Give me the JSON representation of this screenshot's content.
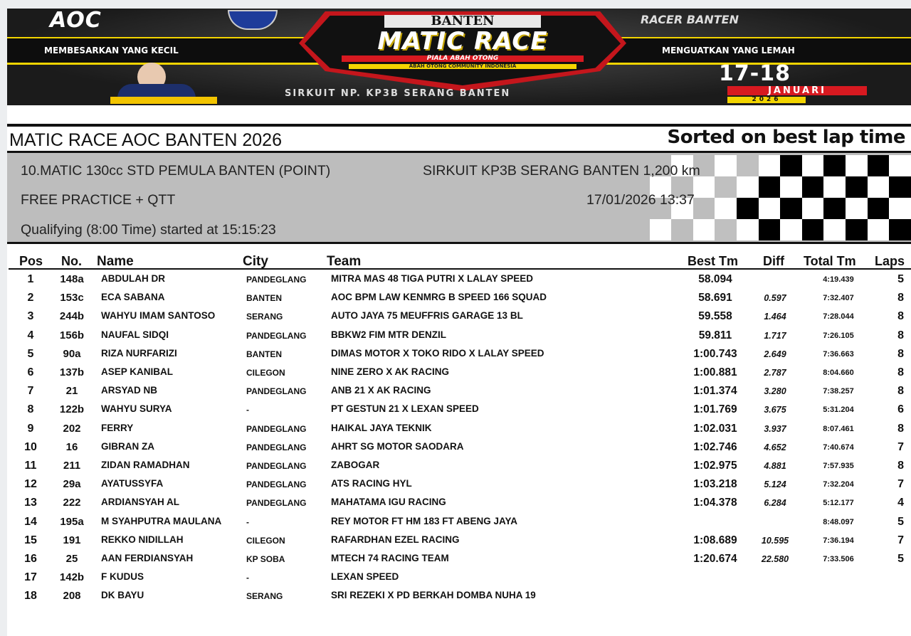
{
  "banner": {
    "logo_left": "AOC",
    "logo_right": "RACER BANTEN",
    "slogan_left": "MEMBESARKAN YANG KECIL",
    "slogan_right": "MENGUATKAN YANG LEMAH",
    "event_region": "BANTEN",
    "event_name": "MATIC RACE",
    "trophy": "PIALA ABAH OTONG",
    "community": "ABAH OTONG COMMUNITY INDONESIA",
    "venue": "SIRKUIT NP. KP3B SERANG BANTEN",
    "dates": "17-18",
    "month": "JANUARI",
    "year": "2026"
  },
  "report": {
    "title": "MATIC RACE AOC BANTEN 2026",
    "sort_note": "Sorted on best lap time",
    "class_name": "10.MATIC 130cc STD PEMULA BANTEN (POINT)",
    "circuit": "SIRKUIT KP3B SERANG BANTEN 1,200 km",
    "session": "FREE PRACTICE + QTT",
    "printed": "17/01/2026 13:37",
    "session_info": "Qualifying (8:00 Time) started at 15:15:23"
  },
  "table": {
    "headers": {
      "pos": "Pos",
      "no": "No.",
      "name": "Name",
      "city": "City",
      "team": "Team",
      "best": "Best Tm",
      "diff": "Diff",
      "total": "Total Tm",
      "laps": "Laps"
    },
    "rows": [
      {
        "pos": "1",
        "no": "148a",
        "name": "ABDULAH DR",
        "city": "PANDEGLANG",
        "team": "MITRA MAS 48 TIGA PUTRI X LALAY SPEED",
        "best": "58.094",
        "diff": "",
        "total": "4:19.439",
        "laps": "5"
      },
      {
        "pos": "2",
        "no": "153c",
        "name": "ECA SABANA",
        "city": "BANTEN",
        "team": "AOC BPM LAW KENMRG B SPEED 166 SQUAD",
        "best": "58.691",
        "diff": "0.597",
        "total": "7:32.407",
        "laps": "8"
      },
      {
        "pos": "3",
        "no": "244b",
        "name": "WAHYU IMAM SANTOSO",
        "city": "SERANG",
        "team": "AUTO JAYA 75 MEUFFRIS GARAGE 13 BL",
        "best": "59.558",
        "diff": "1.464",
        "total": "7:28.044",
        "laps": "8"
      },
      {
        "pos": "4",
        "no": "156b",
        "name": "NAUFAL SIDQI",
        "city": "PANDEGLANG",
        "team": "BBKW2 FIM MTR DENZIL",
        "best": "59.811",
        "diff": "1.717",
        "total": "7:26.105",
        "laps": "8"
      },
      {
        "pos": "5",
        "no": "90a",
        "name": "RIZA NURFARIZI",
        "city": "BANTEN",
        "team": "DIMAS MOTOR X TOKO RIDO X LALAY SPEED",
        "best": "1:00.743",
        "diff": "2.649",
        "total": "7:36.663",
        "laps": "8"
      },
      {
        "pos": "6",
        "no": "137b",
        "name": "ASEP KANIBAL",
        "city": "CILEGON",
        "team": "NINE ZERO X AK RACING",
        "best": "1:00.881",
        "diff": "2.787",
        "total": "8:04.660",
        "laps": "8"
      },
      {
        "pos": "7",
        "no": "21",
        "name": "ARSYAD NB",
        "city": "PANDEGLANG",
        "team": "ANB 21 X AK RACING",
        "best": "1:01.374",
        "diff": "3.280",
        "total": "7:38.257",
        "laps": "8"
      },
      {
        "pos": "8",
        "no": "122b",
        "name": "WAHYU SURYA",
        "city": "-",
        "team": "PT GESTUN 21 X LEXAN SPEED",
        "best": "1:01.769",
        "diff": "3.675",
        "total": "5:31.204",
        "laps": "6"
      },
      {
        "pos": "9",
        "no": "202",
        "name": "FERRY",
        "city": "PANDEGLANG",
        "team": "HAIKAL JAYA TEKNIK",
        "best": "1:02.031",
        "diff": "3.937",
        "total": "8:07.461",
        "laps": "8"
      },
      {
        "pos": "10",
        "no": "16",
        "name": "GIBRAN ZA",
        "city": "PANDEGLANG",
        "team": "AHRT SG MOTOR SAODARA",
        "best": "1:02.746",
        "diff": "4.652",
        "total": "7:40.674",
        "laps": "7"
      },
      {
        "pos": "11",
        "no": "211",
        "name": "ZIDAN RAMADHAN",
        "city": "PANDEGLANG",
        "team": "ZABOGAR",
        "best": "1:02.975",
        "diff": "4.881",
        "total": "7:57.935",
        "laps": "8"
      },
      {
        "pos": "12",
        "no": "29a",
        "name": "AYATUSSYFA",
        "city": "PANDEGLANG",
        "team": "ATS RACING HYL",
        "best": "1:03.218",
        "diff": "5.124",
        "total": "7:32.204",
        "laps": "7"
      },
      {
        "pos": "13",
        "no": "222",
        "name": "ARDIANSYAH AL",
        "city": "PANDEGLANG",
        "team": "MAHATAMA IGU RACING",
        "best": "1:04.378",
        "diff": "6.284",
        "total": "5:12.177",
        "laps": "4"
      },
      {
        "pos": "14",
        "no": "195a",
        "name": "M SYAHPUTRA MAULANA",
        "city": "-",
        "team": "REY MOTOR FT HM 183 FT ABENG JAYA",
        "best": "",
        "diff": "",
        "total": "8:48.097",
        "laps": "5"
      },
      {
        "pos": "15",
        "no": "191",
        "name": "REKKO NIDILLAH",
        "city": "CILEGON",
        "team": "RAFARDHAN EZEL RACING",
        "best": "1:08.689",
        "diff": "10.595",
        "total": "7:36.194",
        "laps": "7"
      },
      {
        "pos": "16",
        "no": "25",
        "name": "AAN FERDIANSYAH",
        "city": "KP SOBA",
        "team": "MTECH 74 RACING TEAM",
        "best": "1:20.674",
        "diff": "22.580",
        "total": "7:33.506",
        "laps": "5"
      },
      {
        "pos": "17",
        "no": "142b",
        "name": "F KUDUS",
        "city": "-",
        "team": "LEXAN SPEED",
        "best": "",
        "diff": "",
        "total": "",
        "laps": ""
      },
      {
        "pos": "18",
        "no": "208",
        "name": "DK BAYU",
        "city": "SERANG",
        "team": "SRI REZEKI X PD BERKAH DOMBA NUHA 19",
        "best": "",
        "diff": "",
        "total": "",
        "laps": ""
      }
    ]
  },
  "colors": {
    "banner_red": "#d71920",
    "banner_yellow": "#f2d400",
    "header_gray": "#bdbdbd"
  }
}
